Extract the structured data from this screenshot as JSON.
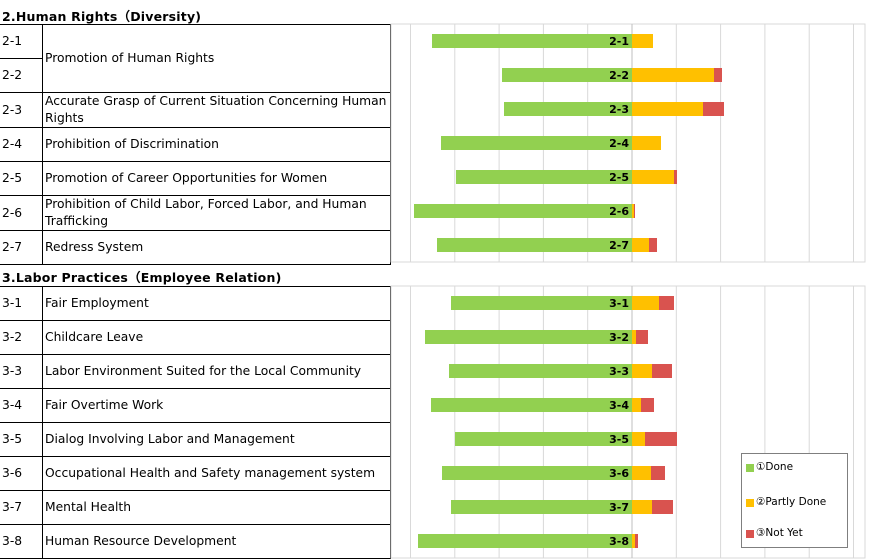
{
  "sections": [
    {
      "title": "2.Human Rights（Diversity)",
      "rows": [
        {
          "code": "2-1",
          "name": "Promotion of Human Rights"
        },
        {
          "code": "2-2",
          "name": ""
        },
        {
          "code": "2-3",
          "name": "Accurate Grasp of Current Situation Concerning Human Rights"
        },
        {
          "code": "2-4",
          "name": "Prohibition of Discrimination"
        },
        {
          "code": "2-5",
          "name": "Promotion of Career Opportunities for Women"
        },
        {
          "code": "2-6",
          "name": "Prohibition of Child Labor, Forced Labor, and  Human Trafficking"
        },
        {
          "code": "2-7",
          "name": "Redress System"
        }
      ]
    },
    {
      "title": "3.Labor Practices（Employee Relation)",
      "rows": [
        {
          "code": "3-1",
          "name": "Fair Employment"
        },
        {
          "code": "3-2",
          "name": "Childcare Leave"
        },
        {
          "code": "3-3",
          "name": "Labor Environment Suited for the Local Community"
        },
        {
          "code": "3-4",
          "name": "Fair Overtime Work"
        },
        {
          "code": "3-5",
          "name": "Dialog Involving Labor and Management"
        },
        {
          "code": "3-6",
          "name": "Occupational Health and Safety management system"
        },
        {
          "code": "3-7",
          "name": "Mental Health"
        },
        {
          "code": "3-8",
          "name": "Human Resource Development"
        }
      ]
    }
  ],
  "legend": [
    {
      "label": "①Done",
      "color": "#92d050"
    },
    {
      "label": "②Partly Done",
      "color": "#ffc000"
    },
    {
      "label": "③Not Yet",
      "color": "#d9534f"
    }
  ],
  "chart_data": [
    {
      "type": "bar",
      "stacked": true,
      "orientation": "horizontal",
      "diverging": true,
      "grid": true,
      "categories": [
        "2-1",
        "2-2",
        "2-3",
        "2-4",
        "2-5",
        "2-6",
        "2-7"
      ],
      "series": [
        {
          "name": "①Done",
          "color": "#92d050",
          "values": [
            200,
            130,
            128,
            191,
            176,
            218,
            195
          ]
        },
        {
          "name": "②Partly Done",
          "color": "#ffc000",
          "values": [
            21,
            82,
            71,
            29,
            42,
            2,
            17
          ]
        },
        {
          "name": "③Not Yet",
          "color": "#d9534f",
          "values": [
            0,
            8,
            21,
            0,
            3,
            1,
            8
          ]
        }
      ]
    },
    {
      "type": "bar",
      "stacked": true,
      "orientation": "horizontal",
      "diverging": true,
      "grid": true,
      "legend_position": "bottom-right",
      "categories": [
        "3-1",
        "3-2",
        "3-3",
        "3-4",
        "3-5",
        "3-6",
        "3-7",
        "3-8"
      ],
      "series": [
        {
          "name": "①Done",
          "color": "#92d050",
          "values": [
            181,
            207,
            183,
            201,
            177,
            190,
            181,
            214
          ]
        },
        {
          "name": "②Partly Done",
          "color": "#ffc000",
          "values": [
            27,
            4,
            20,
            9,
            13,
            19,
            20,
            3
          ]
        },
        {
          "name": "③Not Yet",
          "color": "#d9534f",
          "values": [
            15,
            12,
            20,
            13,
            32,
            14,
            21,
            3
          ]
        }
      ]
    }
  ]
}
